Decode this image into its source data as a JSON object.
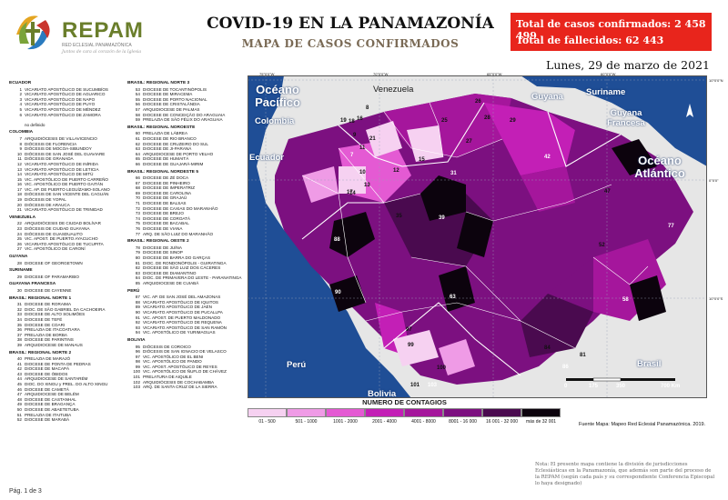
{
  "header": {
    "logo_word": "REPAM",
    "logo_sub": "RED ECLESIAL PANAMAZÓNICA",
    "logo_tag": "Juntos de cara al corazón de la Iglesia",
    "title": "COVID-19 EN LA PANAMAZONÍA",
    "subtitle": "MAPA DE CASOS CONFIRMADOS",
    "date": "Lunes, 29 de marzo de 2021"
  },
  "stats": {
    "confirmed": "Total de casos confirmados: 2 458 499",
    "deaths": "Total de fallecidos: 62 443",
    "bg_color": "#e8251c"
  },
  "lists": {
    "col1": [
      {
        "h": "ECUADOR"
      },
      {
        "n": "1",
        "t": "VICARIATO APOSTÓLICO DE SUCUMBÍOS"
      },
      {
        "n": "2",
        "t": "VICARIATO APOSTÓLICO DE AGUARICO"
      },
      {
        "n": "3",
        "t": "VICARIATO APOSTÓLICO DE NAPO"
      },
      {
        "n": "4",
        "t": "VICARIATO APOSTÓLICO DE PUYO"
      },
      {
        "n": "5",
        "t": "VICARIATO APOSTÓLICO DE MÉNDEZ"
      },
      {
        "n": "6",
        "t": "VICARIATO APOSTÓLICO DE ZAMORA"
      },
      {
        "n": "",
        "t": ""
      },
      {
        "n": "",
        "t": "no definido"
      },
      {
        "h": "COLOMBIA"
      },
      {
        "n": "7",
        "t": "ARQUIDIÓCESIS DE VILLAVICENCIO"
      },
      {
        "n": "8",
        "t": "DIÓCESIS DE FLORENCIA"
      },
      {
        "n": "9",
        "t": "DIÓCESIS DE MOCOA-SIBUNDOY"
      },
      {
        "n": "10",
        "t": "DIÓCESIS DE SAN JOSÉ DEL GUAVIARE"
      },
      {
        "n": "11",
        "t": "DIÓCESIS DE GRANADA"
      },
      {
        "n": "12",
        "t": "VICARIATO APOSTÓLICO DE INÍRIDA"
      },
      {
        "n": "13",
        "t": "VICARIATO APOSTÓLICO DE LETICIA"
      },
      {
        "n": "14",
        "t": "VICARIATO APOSTÓLICO DE MITÚ"
      },
      {
        "n": "15",
        "t": "VIC. APOSTÓLICO DE PUERTO CARREÑO"
      },
      {
        "n": "16",
        "t": "VIC. APOSTÓLICO DE PUERTO GAITÁN"
      },
      {
        "n": "17",
        "t": "VIC. AP. DE PUERTO LEGUÍZAMO-SOLANO"
      },
      {
        "n": "18",
        "t": "DIÓCESIS DE SAN VICENTE DEL CAGUÁN"
      },
      {
        "n": "19",
        "t": "DIÓCESIS DE YOPAL"
      },
      {
        "n": "20",
        "t": "DIÓCESIS DE ARAUCA"
      },
      {
        "n": "21",
        "t": "VICARIATO APOSTÓLICO DE TRINIDAD"
      },
      {
        "h": "VENEZUELA"
      },
      {
        "n": "22",
        "t": "ARQUIDIÓCESIS DE CIUDAD BOLÍVAR"
      },
      {
        "n": "23",
        "t": "DIÓCESIS DE CIUDAD GUAYANA"
      },
      {
        "n": "24",
        "t": "DIÓCESIS DE GUASDUALITO"
      },
      {
        "n": "25",
        "t": "VIC. APOST. DE PUERTO AYACUCHO"
      },
      {
        "n": "26",
        "t": "VICARIATO APOSTÓLICO DE TUCUPITA"
      },
      {
        "n": "27",
        "t": "VIC. APOSTÓLICO DE CARONÍ"
      },
      {
        "h": "GUYANA"
      },
      {
        "n": "28",
        "t": "DIOCESE OF GEORGETOWN"
      },
      {
        "h": "SURINAME"
      },
      {
        "n": "29",
        "t": "DIOCESE OF PARAMARIBO"
      },
      {
        "h": "GUAYANA FRANCESA"
      },
      {
        "n": "30",
        "t": "DIOCESE DE CAYENNE"
      },
      {
        "h": "BRASIL: REGIONAL NORTE 1"
      },
      {
        "n": "31",
        "t": "DIOCESE DE RORAIMA"
      },
      {
        "n": "32",
        "t": "DIOC. DE SÃO GABRIEL DA CACHOEIRA"
      },
      {
        "n": "33",
        "t": "DIOCESE DE ALTO SOLIMÕES"
      },
      {
        "n": "34",
        "t": "DIOCESE DE TEFÉ"
      },
      {
        "n": "35",
        "t": "DIOCESE DE COARI"
      },
      {
        "n": "36",
        "t": "PRELAZIA DE ITACOATIARA"
      },
      {
        "n": "37",
        "t": "PRELAZIA DE BORBA"
      },
      {
        "n": "38",
        "t": "DIOCESE DE PARINTINS"
      },
      {
        "n": "39",
        "t": "ARQUIDIOCESE DE MANAUS"
      },
      {
        "h": "BRASIL: REGIONAL NORTE 2"
      },
      {
        "n": "40",
        "t": "PRELAZIA DE MARAJÓ"
      },
      {
        "n": "41",
        "t": "DIOCESE DE PONTA DE PEDRAS"
      },
      {
        "n": "42",
        "t": "DIOCESE DE MACAPÁ"
      },
      {
        "n": "43",
        "t": "DIOCESE DE ÓBIDOS"
      },
      {
        "n": "44",
        "t": "ARQUIDIOCESE DE SANTARÉM"
      },
      {
        "n": "45",
        "t": "DIOC. DO XINGU y PREL. DO ALTO XINGU"
      },
      {
        "n": "46",
        "t": "DIOCESE DE CAMETÁ"
      },
      {
        "n": "47",
        "t": "ARQUIDIOCESE DE BELÉM"
      },
      {
        "n": "48",
        "t": "DIOCESE DE CASTANHAL"
      },
      {
        "n": "49",
        "t": "DIOCESE DE BRAGANÇA"
      },
      {
        "n": "50",
        "t": "DIOCESE DE ABAETETUBA"
      },
      {
        "n": "51",
        "t": "PRELAZIA DE ITAITUBA"
      },
      {
        "n": "52",
        "t": "DIOCESE DE MARABÁ"
      }
    ],
    "col2": [
      {
        "h": "BRASIL: REGIONAL NORTE 3"
      },
      {
        "n": "53",
        "t": "DIOCESE DE TOCANTINÓPOLIS"
      },
      {
        "n": "54",
        "t": "DIOCESE DE MIRACEMA"
      },
      {
        "n": "55",
        "t": "DIOCESE DE PORTO NACIONAL"
      },
      {
        "n": "56",
        "t": "DIOCESE DE CRISTALÂNDIA"
      },
      {
        "n": "57",
        "t": "ARQUIDIOCESE DE PALMAS"
      },
      {
        "n": "58",
        "t": "DIOCESE DE CONCEIÇÃO DO ARAGUAIA"
      },
      {
        "n": "59",
        "t": "PRELAZIA DE SÃO FÉLIX DO ARAGUAIA"
      },
      {
        "h": "BRASIL: REGIONAL NOROESTE"
      },
      {
        "n": "60",
        "t": "PRELAZIA DE LÁBREA"
      },
      {
        "n": "61",
        "t": "DIOCESE DE RIO BRANCO"
      },
      {
        "n": "62",
        "t": "DIOCESE DE CRUZEIRO DO SUL"
      },
      {
        "n": "63",
        "t": "DIOCESE DE JI-PARANÁ"
      },
      {
        "n": "64",
        "t": "ARQUIDIOCESE DE PORTO VELHO"
      },
      {
        "n": "65",
        "t": "DIOCESE DE HUMAITÁ"
      },
      {
        "n": "66",
        "t": "DIOCESE DE GUAJARÁ-MIRIM"
      },
      {
        "h": "BRASIL: REGIONAL NORDESTE 5"
      },
      {
        "n": "66",
        "t": "DIOCESE DE ZÉ DOCA"
      },
      {
        "n": "67",
        "t": "DIOCESE DE PINHEIRO"
      },
      {
        "n": "68",
        "t": "DIOCESE DE IMPERATRIZ"
      },
      {
        "n": "69",
        "t": "DIOCESE DE CAROLINA"
      },
      {
        "n": "70",
        "t": "DIOCESE DE GRAJAÚ"
      },
      {
        "n": "71",
        "t": "DIOCESE DE BALSAS"
      },
      {
        "n": "72",
        "t": "DIOCESE DE CAXIAS DO MARANHÃO"
      },
      {
        "n": "73",
        "t": "DIOCESE DE BREJO"
      },
      {
        "n": "74",
        "t": "DIOCESE DE COROATÁ"
      },
      {
        "n": "75",
        "t": "DIOCESE DE BACABAL"
      },
      {
        "n": "76",
        "t": "DIOCESE DE VIANA"
      },
      {
        "n": "77",
        "t": "ARQ. DE SÃO LUIZ DO MARANHÃO"
      },
      {
        "h": "BRASIL: REGIONAL OESTE 2"
      },
      {
        "n": "78",
        "t": "DIOCESE DE JUÍNA"
      },
      {
        "n": "79",
        "t": "DIOCESE DE SINOP"
      },
      {
        "n": "80",
        "t": "DIOCESE DE BARRA DO GARÇAS"
      },
      {
        "n": "81",
        "t": "DIOC. DE RONDONÓPOLIS - GUIRATINGA"
      },
      {
        "n": "82",
        "t": "DIOCESE DE SÃO LUIZ DOS CÁCERES"
      },
      {
        "n": "83",
        "t": "DIOCESE DE DIAMANTINO"
      },
      {
        "n": "84",
        "t": "DIOC. DE PRIMAVERA DO LESTE - PARANATINGA"
      },
      {
        "n": "85",
        "t": "ARQUIDIOCESE DE CUIABÁ"
      },
      {
        "h": "PERÚ"
      },
      {
        "n": "87",
        "t": "VIC. AP. DE SAN JOSÉ DEL AMAZONAS"
      },
      {
        "n": "88",
        "t": "VICARIATO APOSTÓLICO DE IQUITOS"
      },
      {
        "n": "89",
        "t": "VICARIATO APOSTÓLICO DE JAÉN"
      },
      {
        "n": "90",
        "t": "VICARIATO APOSTÓLICO DE PUCALLPA"
      },
      {
        "n": "91",
        "t": "VIC. APOST. DE PUERTO MALDONADO"
      },
      {
        "n": "92",
        "t": "VICARIATO APOSTÓLICO DE REQUENA"
      },
      {
        "n": "93",
        "t": "VICARIATO APOSTÓLICO DE SAN RAMÓN"
      },
      {
        "n": "94",
        "t": "VIC. APOSTÓLICO DE YURIMAGUAS"
      },
      {
        "h": "BOLIVIA"
      },
      {
        "n": "95",
        "t": "DIÓCESIS DE COROICO"
      },
      {
        "n": "96",
        "t": "DIÓCESIS DE SAN IGNACIO DE VELASCO"
      },
      {
        "n": "97",
        "t": "VIC. APOSTÓLICO DE EL BENI"
      },
      {
        "n": "98",
        "t": "VIC. APOSTÓLICO DE PANDO"
      },
      {
        "n": "99",
        "t": "VIC. APOST. APOSTÓLICO DE REYES"
      },
      {
        "n": "100",
        "t": "VIC. APOSTÓLICO DE ÑUFLO DE CHÁVEZ"
      },
      {
        "n": "101",
        "t": "PRELATURA DE AIQUILE"
      },
      {
        "n": "102",
        "t": "ARQUIDIÓCESIS DE COCHABAMBA"
      },
      {
        "n": "103",
        "t": "ARQ. DE SANTA CRUZ DE LA SIERRA"
      }
    ]
  },
  "map": {
    "labels": {
      "pacific": "Océano Pacífico",
      "atlantic": "Océano Atlántico",
      "venezuela": "Venezuela",
      "colombia": "Colombia",
      "guyana": "Guyana",
      "suriname": "Suriname",
      "french_guiana": "Guyana Francesa",
      "ecuador": "Ecuador",
      "peru": "Perú",
      "bolivia": "Bolivia",
      "brasil": "Brasil"
    },
    "scale": {
      "t0": "0",
      "t1": "175",
      "t2": "350",
      "t3": "700 Km"
    },
    "coords": {
      "lon1": "75°0'0\"W",
      "lon2": "70°0'0\"W",
      "lon3": "65°0'0\"W",
      "lon4": "60°0'0\"W",
      "lon5": "55°0'0\"W",
      "lon6": "50°0'0\"W",
      "lat1": "10°0'0\"N",
      "lat2": "0°0'0\"",
      "lat3": "10°0'0\"S"
    },
    "sea_color": "#1f4e96",
    "land_color": "#e6e6e6",
    "border_color": "#ffffff",
    "numbers": [
      "7",
      "8",
      "9",
      "10",
      "11",
      "12",
      "13",
      "14",
      "15",
      "16",
      "17",
      "18",
      "19",
      "21",
      "25",
      "26",
      "27",
      "28",
      "29",
      "31",
      "35",
      "39",
      "42",
      "47",
      "52",
      "58",
      "63",
      "77",
      "81",
      "84",
      "86",
      "88",
      "90",
      "97",
      "99",
      "100",
      "101",
      "103"
    ]
  },
  "legend": {
    "title": "NUMERO DE CONTAGIOS",
    "bins": [
      {
        "label": "01 - 500",
        "color": "#f6d1f1"
      },
      {
        "label": "501 - 1000",
        "color": "#ef9be6"
      },
      {
        "label": "1001 - 2000",
        "color": "#e45ad3"
      },
      {
        "label": "2001 - 4000",
        "color": "#c31fb6"
      },
      {
        "label": "4001 - 8000",
        "color": "#a5169c"
      },
      {
        "label": "8001 - 16 000",
        "color": "#7c1080"
      },
      {
        "label": "16 001 - 32 000",
        "color": "#4a0a4f"
      },
      {
        "label": "más de 32 001",
        "color": "#0c030d"
      }
    ]
  },
  "source": "Fuente Mapa: Mapeo Red Eclesial Panamazónica. 2019.",
  "note": "Nota: El presente mapa contiene la división de jurisdicciones Eclesiásticas en la Panamazonía, que además son parte del proceso de la REPAM (según cada país y su correspondiente Conferencia Episcopal lo haya designado)",
  "page": "Pág. 1 de 3"
}
